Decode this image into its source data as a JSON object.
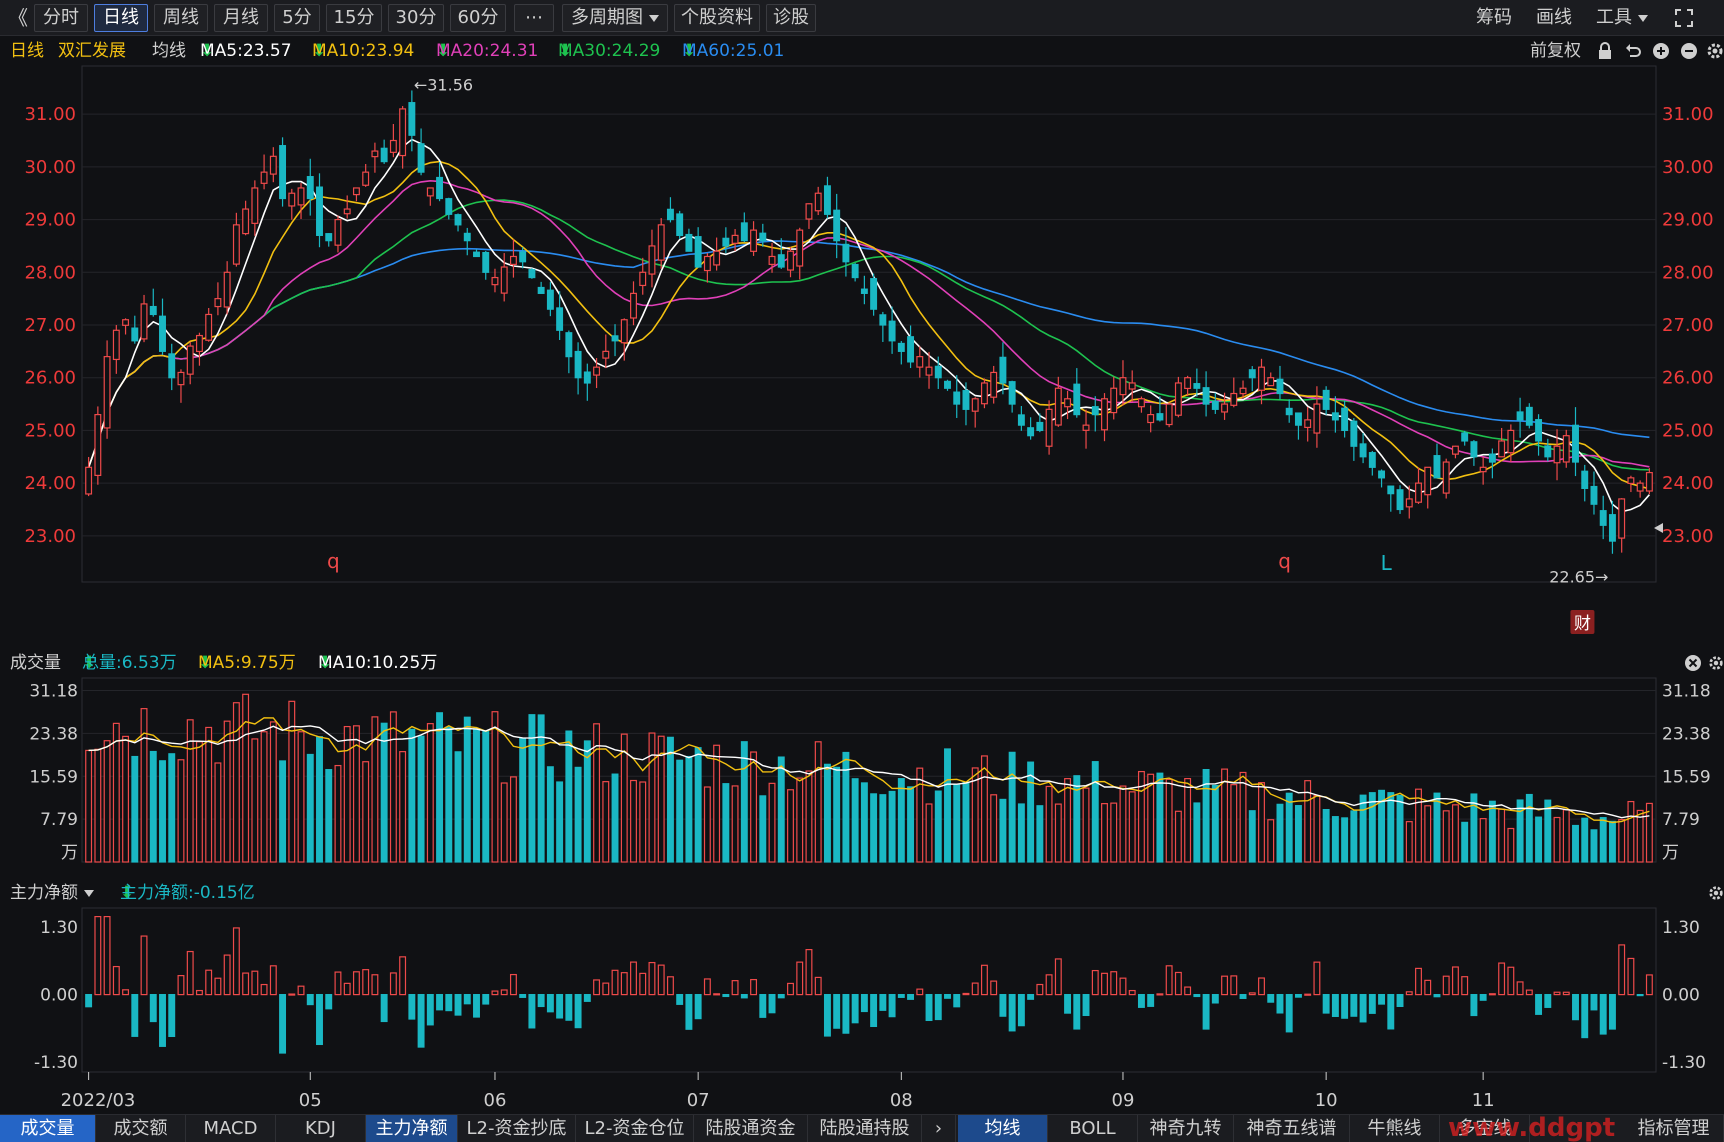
{
  "toolbar": {
    "back_glyph": "《",
    "periods": [
      "分时",
      "日线",
      "周线",
      "月线",
      "5分",
      "15分",
      "30分",
      "60分",
      "⋯"
    ],
    "active_period": 1,
    "multi_period": "多周期图",
    "stock_info": "个股资料",
    "diagnose": "诊股",
    "chips": "筹码",
    "draw": "画线",
    "tools": "工具"
  },
  "legend_main": {
    "period": "日线",
    "stock": "双汇发展",
    "ma_label": "均线",
    "ma5": "MA5:23.57",
    "ma10": "MA10:23.94",
    "ma20": "MA20:24.31",
    "ma30": "MA30:24.29",
    "ma60": "MA60:25.01",
    "adjust": "前复权"
  },
  "legend_vol": {
    "title": "成交量",
    "total": "总量:6.53万",
    "ma5": "MA5:9.75万",
    "ma10": "MA10:10.25万"
  },
  "legend_flow": {
    "title": "主力净额",
    "value": "主力净额:-0.15亿"
  },
  "colors": {
    "up": "#ee4a4a",
    "down": "#1ab8c4",
    "ma5": "#ffffff",
    "ma10": "#f2c011",
    "ma20": "#e040b8",
    "ma30": "#1ec24f",
    "ma60": "#2a8cf0",
    "price_label": "#ee3a3a"
  },
  "chart_data": [
    {
      "type": "candlestick",
      "ylim": [
        22.2,
        31.8
      ],
      "y_ticks": [
        "31.00",
        "30.00",
        "29.00",
        "28.00",
        "27.00",
        "26.00",
        "25.00",
        "24.00",
        "23.00"
      ],
      "x_ticks": [
        "2022/03",
        "05",
        "06",
        "07",
        "08",
        "09",
        "10",
        "11"
      ],
      "high_label": "31.56",
      "low_label": "22.65",
      "markers": [
        "q",
        "q",
        "L",
        "财"
      ],
      "close": [
        24.3,
        25.3,
        26.4,
        26.9,
        27.1,
        26.7,
        27.4,
        27.2,
        26.5,
        26.0,
        26.1,
        26.6,
        26.8,
        27.2,
        27.5,
        28.0,
        28.9,
        29.2,
        29.6,
        29.9,
        30.2,
        29.4,
        29.5,
        29.6,
        29.4,
        28.7,
        28.6,
        29.0,
        29.2,
        29.6,
        29.9,
        30.3,
        30.1,
        30.5,
        31.1,
        30.6,
        29.9,
        29.6,
        29.4,
        29.1,
        28.9,
        28.6,
        28.3,
        28.0,
        27.9,
        28.1,
        28.3,
        28.2,
        27.9,
        27.6,
        27.3,
        26.9,
        26.4,
        26.0,
        25.9,
        26.2,
        26.5,
        26.7,
        27.1,
        27.6,
        28.0,
        28.5,
        28.9,
        29.0,
        28.7,
        28.4,
        28.1,
        28.3,
        28.4,
        28.5,
        28.7,
        28.6,
        28.8,
        28.6,
        28.3,
        28.1,
        28.4,
        28.8,
        29.3,
        29.5,
        29.1,
        28.6,
        28.2,
        27.9,
        27.6,
        27.3,
        27.0,
        26.7,
        26.5,
        26.3,
        26.4,
        26.2,
        26.0,
        25.8,
        25.5,
        25.4,
        25.6,
        25.9,
        26.1,
        25.9,
        25.5,
        25.1,
        24.9,
        25.0,
        25.4,
        25.8,
        25.6,
        25.3,
        25.1,
        25.3,
        25.6,
        25.8,
        26.0,
        25.9,
        25.6,
        25.3,
        25.2,
        25.5,
        25.9,
        26.0,
        25.8,
        25.5,
        25.4,
        25.5,
        25.7,
        25.8,
        26.0,
        26.2,
        26.0,
        25.7,
        25.3,
        25.1,
        25.2,
        25.5,
        25.4,
        25.2,
        25.0,
        24.7,
        24.5,
        24.3,
        24.1,
        23.8,
        23.5,
        23.7,
        24.0,
        24.3,
        24.1,
        24.4,
        24.7,
        24.8,
        24.5,
        24.3,
        24.4,
        24.8,
        25.0,
        25.2,
        25.1,
        24.8,
        24.5,
        24.7,
        24.9,
        24.4,
        23.9,
        23.6,
        23.2,
        22.9,
        23.7,
        24.1,
        24.0,
        24.2
      ],
      "volume_ticks": [
        "31.18",
        "23.38",
        "15.59",
        "7.79"
      ],
      "volume_unit": "万",
      "volume_max": 32,
      "flow_ticks": [
        "1.30",
        "0.00",
        "-1.30"
      ],
      "flow_range": [
        -1.45,
        1.55
      ]
    }
  ],
  "tabs_left": [
    "成交量",
    "成交额",
    "MACD",
    "KDJ",
    "主力净额",
    "L2-资金抄底",
    "L2-资金仓位",
    "陆股通资金",
    "陆股通持股"
  ],
  "tabs_right": [
    "均线",
    "BOLL",
    "神奇九转",
    "神奇五线谱",
    "牛熊线",
    "多空线",
    "指标管理"
  ],
  "watermark": "www.ddgpt"
}
